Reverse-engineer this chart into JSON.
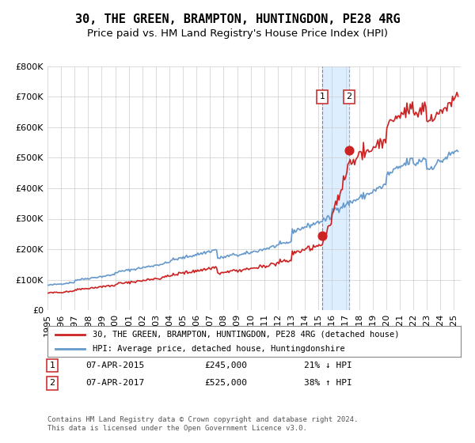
{
  "title": "30, THE GREEN, BRAMPTON, HUNTINGDON, PE28 4RG",
  "subtitle": "Price paid vs. HM Land Registry's House Price Index (HPI)",
  "xlabel": "",
  "ylabel": "",
  "ylim": [
    0,
    800000
  ],
  "xlim_start": 1995.0,
  "xlim_end": 2025.5,
  "yticks": [
    0,
    100000,
    200000,
    300000,
    400000,
    500000,
    600000,
    700000,
    800000
  ],
  "ytick_labels": [
    "£0",
    "£100K",
    "£200K",
    "£300K",
    "£400K",
    "£500K",
    "£600K",
    "£700K",
    "£800K"
  ],
  "xtick_years": [
    1995,
    1996,
    1997,
    1998,
    1999,
    2000,
    2001,
    2002,
    2003,
    2004,
    2005,
    2006,
    2007,
    2008,
    2009,
    2010,
    2011,
    2012,
    2013,
    2014,
    2015,
    2016,
    2017,
    2018,
    2019,
    2020,
    2021,
    2022,
    2023,
    2024,
    2025
  ],
  "hpi_color": "#6699cc",
  "price_color": "#cc2222",
  "dot_color": "#cc2222",
  "bg_color": "#ffffff",
  "grid_color": "#cccccc",
  "highlight_color": "#ddeeff",
  "transaction1_date": 2015.27,
  "transaction1_price": 245000,
  "transaction2_date": 2017.27,
  "transaction2_price": 525000,
  "legend1_label": "30, THE GREEN, BRAMPTON, HUNTINGDON, PE28 4RG (detached house)",
  "legend2_label": "HPI: Average price, detached house, Huntingdonshire",
  "ann1_label": "1",
  "ann2_label": "2",
  "ann1_text": "07-APR-2015",
  "ann1_price": "£245,000",
  "ann1_hpi": "21% ↓ HPI",
  "ann2_text": "07-APR-2017",
  "ann2_price": "£525,000",
  "ann2_hpi": "38% ↑ HPI",
  "footer": "Contains HM Land Registry data © Crown copyright and database right 2024.\nThis data is licensed under the Open Government Licence v3.0.",
  "title_fontsize": 11,
  "subtitle_fontsize": 9.5,
  "tick_fontsize": 8
}
